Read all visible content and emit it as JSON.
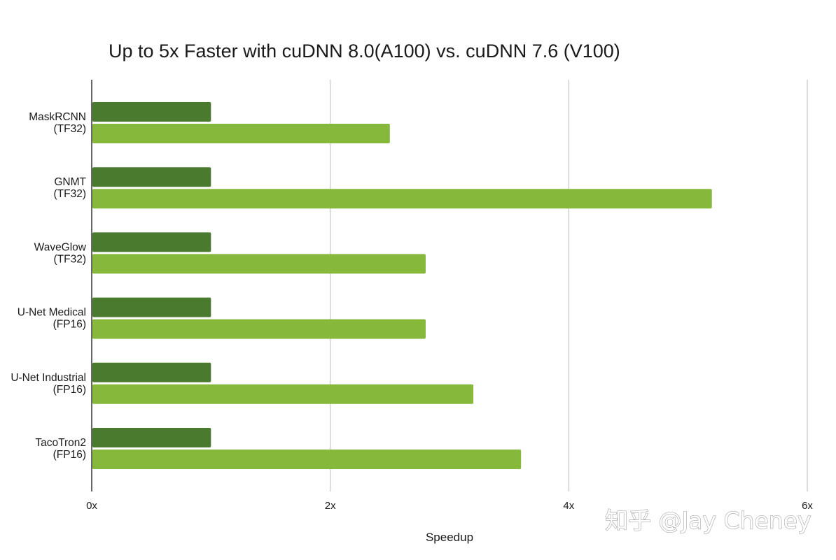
{
  "colors": {
    "series_a": "#4a7a2e",
    "series_b": "#86b83c",
    "grid": "#d0d0d0",
    "axis": "#333333"
  },
  "watermark": {
    "text": "知乎 @Jay Cheney"
  },
  "chart_data": {
    "type": "bar",
    "orientation": "horizontal",
    "title": "Up to 5x Faster with cuDNN 8.0(A100) vs. cuDNN 7.6 (V100)",
    "xlabel": "Speedup",
    "ylabel": "",
    "xlim": [
      0,
      6
    ],
    "x_ticks": [
      0,
      2,
      4,
      6
    ],
    "x_tick_labels": [
      "0x",
      "2x",
      "4x",
      "6x"
    ],
    "grid": true,
    "legend": "none",
    "categories": [
      [
        "MaskRCNN",
        "(TF32)"
      ],
      [
        "GNMT",
        "(TF32)"
      ],
      [
        "WaveGlow",
        "(TF32)"
      ],
      [
        "U-Net Medical",
        "(FP16)"
      ],
      [
        "U-Net Industrial",
        "(FP16)"
      ],
      [
        "TacoTron2",
        "(FP16)"
      ]
    ],
    "series": [
      {
        "values": [
          1,
          1,
          1,
          1,
          1,
          1
        ],
        "color": "#4a7a2e"
      },
      {
        "values": [
          2.5,
          5.2,
          2.8,
          2.8,
          3.2,
          3.6
        ],
        "color": "#86b83c"
      }
    ]
  }
}
